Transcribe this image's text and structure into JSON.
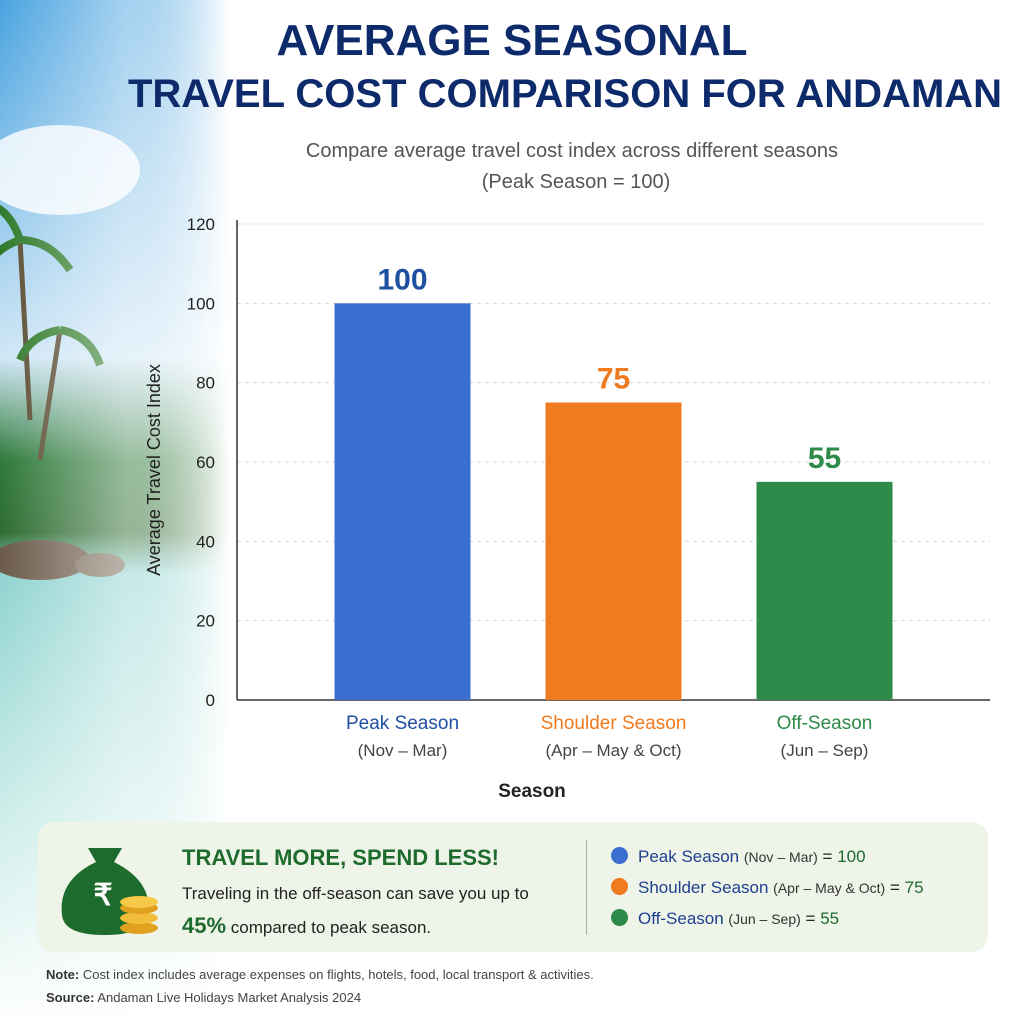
{
  "chart_data": {
    "type": "bar",
    "title": [
      "AVERAGE SEASONAL",
      "TRAVEL COST COMPARISON FOR ANDAMAN"
    ],
    "subtitle": [
      "Compare average travel cost index across different seasons",
      "(Peak Season = 100)"
    ],
    "categories": [
      "Peak Season",
      "Shoulder Season",
      "Off-Season"
    ],
    "category_ranges": [
      "(Nov – Mar)",
      "(Apr – May & Oct)",
      "(Jun – Sep)"
    ],
    "values": [
      100,
      75,
      55
    ],
    "colors": [
      "#3a6fd0",
      "#f07a1e",
      "#2e8b4a"
    ],
    "ylim": [
      0,
      120
    ],
    "yticks": [
      0,
      20,
      40,
      60,
      80,
      100,
      120
    ],
    "y_label": "Average Travel Cost Index",
    "x_label": "Season",
    "grid": true
  },
  "callout": {
    "title": "TRAVEL MORE, SPEND LESS!",
    "text": "Traveling in the off-season can save you up to",
    "highlight": "45%",
    "text_end": "compared to peak season."
  },
  "legend_separator": "=",
  "note": {
    "label": "Note:",
    "text": "Cost index includes average expenses on flights, hotels, food, local transport & activities."
  },
  "source": {
    "label": "Source:",
    "text": "Andaman Live Holidays Market Analysis 2024"
  }
}
